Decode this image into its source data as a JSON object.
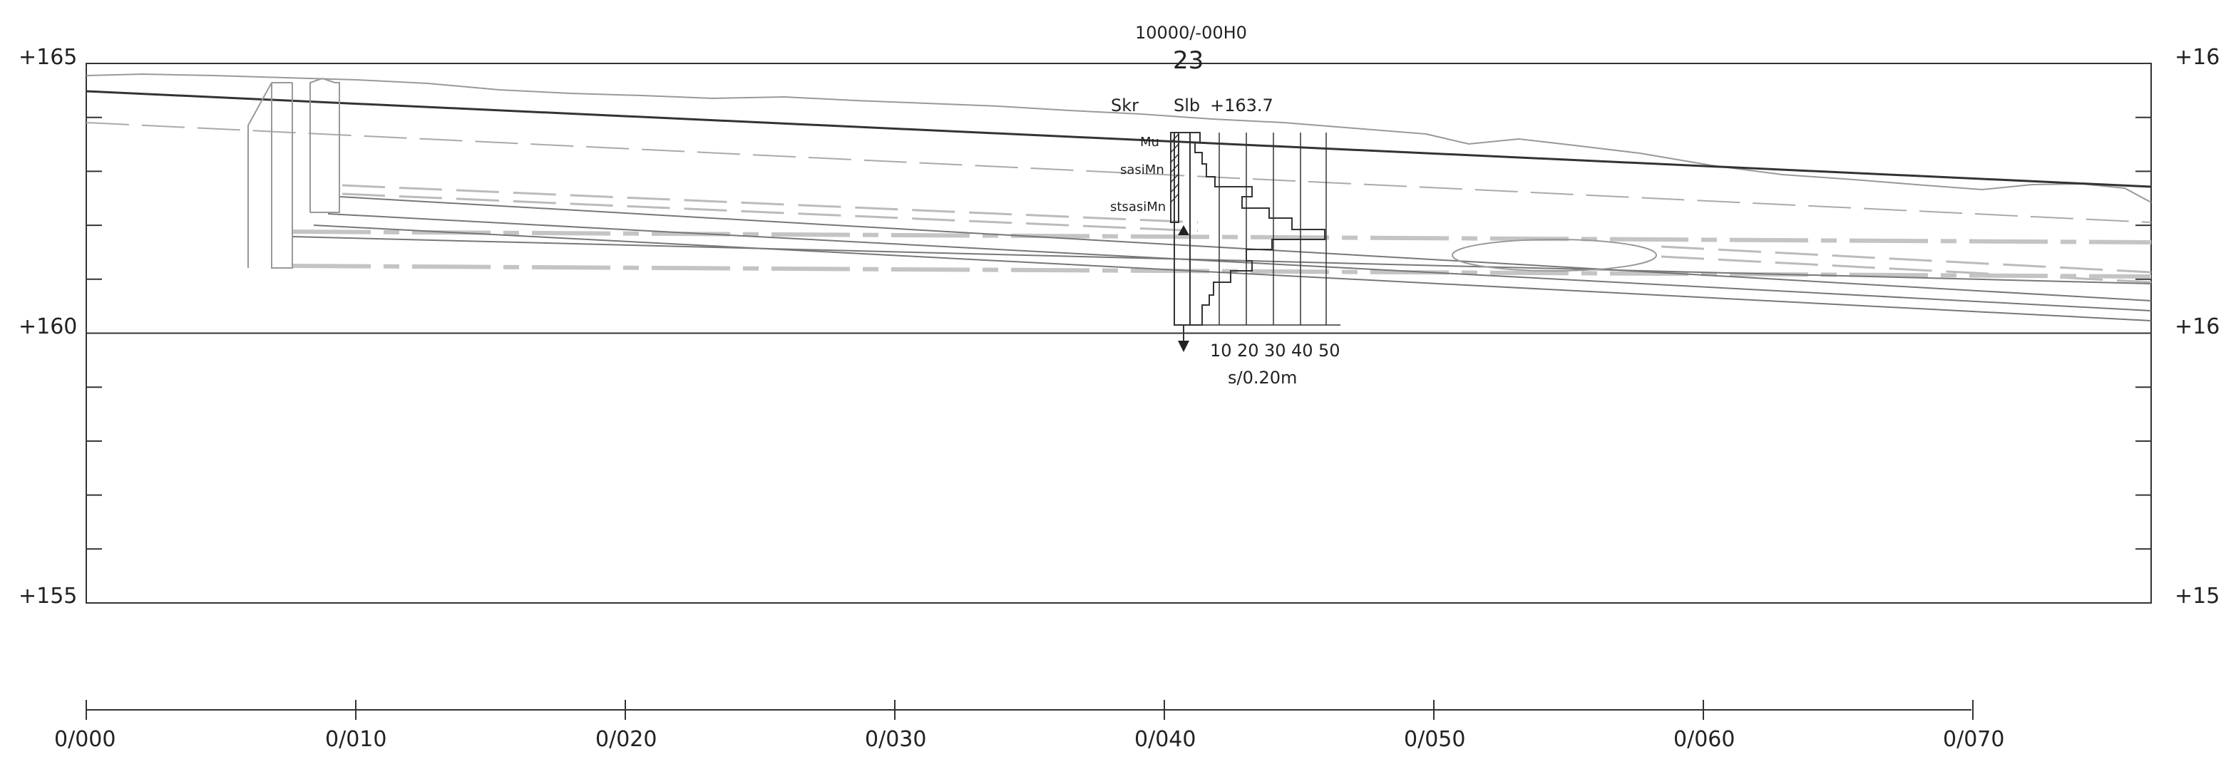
{
  "profile": {
    "elevation_axis": {
      "labels": [
        "+165",
        "+160",
        "+155"
      ],
      "elevations": [
        165,
        160,
        155
      ],
      "minor_tick_step": 1
    },
    "station_axis": {
      "labels": [
        "0/000",
        "0/010",
        "0/020",
        "0/030",
        "0/040",
        "0/050",
        "0/060",
        "0/070"
      ],
      "chainage_m": [
        0,
        10,
        20,
        30,
        40,
        50,
        60,
        70
      ]
    },
    "borehole": {
      "id_code": "10000/-00H0",
      "number": "23",
      "method_left": "Skr",
      "method_right": "Slb",
      "top_elevation_label": "+163.7",
      "top_elevation": 163.7,
      "chainage_m": 40.8,
      "soil_layers": [
        {
          "label": "Mu",
          "top": 163.7,
          "bottom": 163.4
        },
        {
          "label": "sasiMn",
          "top": 163.4,
          "bottom": 162.8
        },
        {
          "label": "stsasiMn",
          "top": 162.8,
          "bottom": 162.0
        }
      ],
      "groundwater_elevation": 161.95,
      "bottom_elevation": 160.2,
      "sounding_scale_ticks": [
        "10",
        "20",
        "30",
        "40",
        "50"
      ],
      "sounding_unit_label": "s/0.20m"
    },
    "colors": {
      "frame": "#333333",
      "ground": "#999999",
      "design_line": "#333333",
      "layer_lines": "#777777",
      "dashed_lines": "#aaaaaa"
    }
  }
}
